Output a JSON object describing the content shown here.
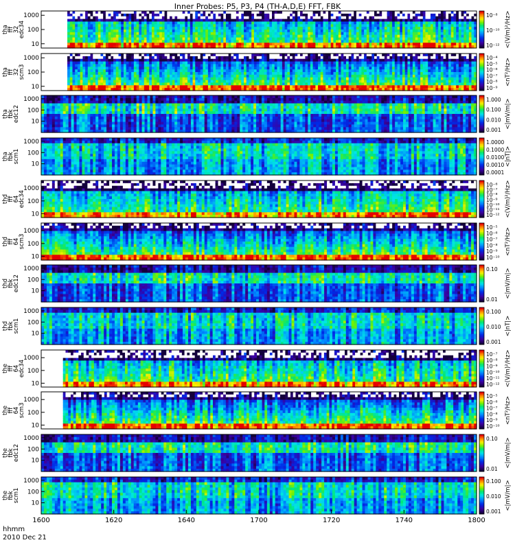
{
  "chart_data": {
    "type": "heatmap",
    "title": "Inner Probes: P5, P3, P4 (TH-A,D,E) FFT, FBK",
    "date_label": "2010 Dec 21",
    "time_label": "hhmm",
    "x_ticks": [
      "1600",
      "1620",
      "1640",
      "1700",
      "1720",
      "1740",
      "1800"
    ],
    "panels": [
      {
        "label": [
          "tha",
          "fff",
          "32",
          "edc34"
        ],
        "ylim": [
          5,
          2000
        ],
        "yticks": [
          "1000",
          "100",
          "10"
        ],
        "cbar_label": "<(V/m)²/Hz>",
        "cbar_ticks": [
          "10⁻⁸",
          "10⁻¹⁰",
          "10⁻¹²"
        ],
        "style": "fff_e",
        "data_start": 0.06
      },
      {
        "label": [
          "tha",
          "fff",
          "32",
          "scm3"
        ],
        "ylim": [
          5,
          2000
        ],
        "yticks": [
          "1000",
          "100",
          "10"
        ],
        "cbar_label": "<nT²/Hz>",
        "cbar_ticks": [
          "10⁻⁴",
          "10⁻⁵",
          "10⁻⁶",
          "10⁻⁷",
          "10⁻⁸",
          "10⁻⁹"
        ],
        "style": "fff_b",
        "data_start": 0.06
      },
      {
        "label": [
          "tha",
          "fbk",
          "edc12"
        ],
        "ylim": [
          1,
          2000
        ],
        "yticks": [
          "1000",
          "100",
          "10"
        ],
        "cbar_label": "<|mV/m|>",
        "cbar_ticks": [
          "1.000",
          "0.100",
          "0.010",
          "0.001"
        ],
        "style": "fbk",
        "data_start": 0
      },
      {
        "label": [
          "tha",
          "fbk",
          "scm1"
        ],
        "ylim": [
          1,
          2000
        ],
        "yticks": [
          "1000",
          "100",
          "10"
        ],
        "cbar_label": "<|nT|>",
        "cbar_ticks": [
          "1.0000",
          "0.1000",
          "0.0100",
          "0.0010",
          "0.0001"
        ],
        "style": "fbk_b",
        "data_start": 0
      },
      {
        "label": [
          "thd",
          "fff",
          "64",
          "edc34"
        ],
        "ylim": [
          5,
          4000
        ],
        "yticks": [
          "1000",
          "100",
          "10"
        ],
        "cbar_label": "<(V/m)²/Hz>",
        "cbar_ticks": [
          "10⁻⁶",
          "10⁻⁷",
          "10⁻⁸",
          "10⁻⁹",
          "10⁻¹⁰",
          "10⁻¹¹",
          "10⁻¹²"
        ],
        "style": "fff_e",
        "data_start": 0
      },
      {
        "label": [
          "thd",
          "fff",
          "64",
          "scm3"
        ],
        "ylim": [
          5,
          4000
        ],
        "yticks": [
          "1000",
          "100",
          "10"
        ],
        "cbar_label": "<nT²/Hz>",
        "cbar_ticks": [
          "10⁻⁵",
          "10⁻⁶",
          "10⁻⁷",
          "10⁻⁸",
          "10⁻⁹",
          "10⁻¹⁰"
        ],
        "style": "fff_b",
        "data_start": 0
      },
      {
        "label": [
          "thd",
          "fbk",
          "edc12"
        ],
        "ylim": [
          1,
          2000
        ],
        "yticks": [
          "1000",
          "100",
          "10"
        ],
        "cbar_label": "<|mV/m|>",
        "cbar_ticks": [
          "0.10",
          "0.01"
        ],
        "style": "fbk",
        "data_start": 0
      },
      {
        "label": [
          "thd",
          "fbk",
          "scm1"
        ],
        "ylim": [
          1,
          2000
        ],
        "yticks": [
          "1000",
          "100",
          "10"
        ],
        "cbar_label": "<|nT|>",
        "cbar_ticks": [
          "0.100",
          "0.010",
          "0.001"
        ],
        "style": "fbk_b",
        "data_start": 0
      },
      {
        "label": [
          "the",
          "fff",
          "64",
          "edc34"
        ],
        "ylim": [
          5,
          4000
        ],
        "yticks": [
          "1000",
          "100",
          "10"
        ],
        "cbar_label": "<(V/m)²/Hz>",
        "cbar_ticks": [
          "10⁻⁷",
          "10⁻⁸",
          "10⁻⁹",
          "10⁻¹⁰",
          "10⁻¹¹",
          "10⁻¹²"
        ],
        "style": "fff_e",
        "data_start": 0.05
      },
      {
        "label": [
          "the",
          "fff",
          "64",
          "scm3"
        ],
        "ylim": [
          5,
          4000
        ],
        "yticks": [
          "1000",
          "100",
          "10"
        ],
        "cbar_label": "<nT²/Hz>",
        "cbar_ticks": [
          "10⁻⁵",
          "10⁻⁶",
          "10⁻⁷",
          "10⁻⁸",
          "10⁻⁹",
          "10⁻¹⁰"
        ],
        "style": "fff_b",
        "data_start": 0.05
      },
      {
        "label": [
          "the",
          "fbk",
          "edc12"
        ],
        "ylim": [
          1,
          2000
        ],
        "yticks": [
          "1000",
          "100",
          "10"
        ],
        "cbar_label": "<|mV/m|>",
        "cbar_ticks": [
          "0.10",
          "0.01"
        ],
        "style": "fbk",
        "data_start": 0
      },
      {
        "label": [
          "the",
          "fbk",
          "scm1"
        ],
        "ylim": [
          1,
          2000
        ],
        "yticks": [
          "1000",
          "100",
          "10"
        ],
        "cbar_label": "<|mV/m|>",
        "cbar_ticks": [
          "0.100",
          "0.010",
          "0.001"
        ],
        "style": "fbk_b",
        "data_start": 0
      }
    ]
  }
}
